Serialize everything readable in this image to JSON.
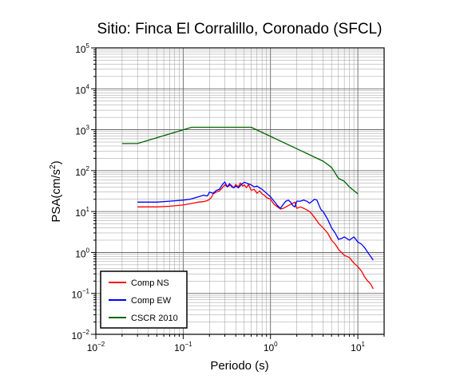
{
  "chart_data": {
    "type": "line",
    "title": "Sitio: Finca El Corralillo, Coronado (SFCL)",
    "xlabel": "Periodo (s)",
    "ylabel": "PSA(cm/s²)",
    "ylabel_parts": {
      "pre": "PSA(cm/s",
      "sup": "2",
      "post": ")"
    },
    "xscale": "log",
    "yscale": "log",
    "xlim": [
      0.01,
      20
    ],
    "ylim": [
      0.01,
      100000
    ],
    "x_ticks": [
      {
        "value": 0.01,
        "base": "10",
        "exp": "−2"
      },
      {
        "value": 0.1,
        "base": "10",
        "exp": "−1"
      },
      {
        "value": 1,
        "base": "10",
        "exp": "0"
      },
      {
        "value": 10,
        "base": "10",
        "exp": "1"
      }
    ],
    "y_ticks": [
      {
        "value": 0.01,
        "base": "10",
        "exp": "−2"
      },
      {
        "value": 0.1,
        "base": "10",
        "exp": "−1"
      },
      {
        "value": 1,
        "base": "10",
        "exp": "0"
      },
      {
        "value": 10,
        "base": "10",
        "exp": "1"
      },
      {
        "value": 100,
        "base": "10",
        "exp": "2"
      },
      {
        "value": 1000,
        "base": "10",
        "exp": "3"
      },
      {
        "value": 10000,
        "base": "10",
        "exp": "4"
      },
      {
        "value": 100000,
        "base": "10",
        "exp": "5"
      }
    ],
    "grid": true,
    "legend_position": "bottom-left",
    "series": [
      {
        "name": "Comp NS",
        "color": "#ff0000",
        "x": [
          0.03,
          0.04,
          0.05,
          0.07,
          0.1,
          0.12,
          0.15,
          0.17,
          0.19,
          0.2,
          0.21,
          0.22,
          0.24,
          0.26,
          0.28,
          0.3,
          0.32,
          0.35,
          0.38,
          0.4,
          0.43,
          0.45,
          0.48,
          0.5,
          0.53,
          0.56,
          0.6,
          0.65,
          0.7,
          0.75,
          0.8,
          0.85,
          0.9,
          1.0,
          1.1,
          1.2,
          1.3,
          1.4,
          1.5,
          1.7,
          1.9,
          2.0,
          2.2,
          2.4,
          2.6,
          2.8,
          3.0,
          3.3,
          3.6,
          4.0,
          4.5,
          5.0,
          5.5,
          6.0,
          6.5,
          7.0,
          8.0,
          9.0,
          10.0,
          11.0,
          12.0,
          13.0,
          14.0,
          15.0
        ],
        "values": [
          13,
          13,
          13,
          13.5,
          14.5,
          15.5,
          17,
          17.5,
          18.5,
          20,
          22,
          27,
          30,
          32,
          38,
          45,
          40,
          45,
          38,
          46,
          40,
          50,
          42,
          45,
          38,
          46,
          33,
          35,
          28,
          32,
          27,
          25,
          22,
          20,
          15,
          13,
          11.5,
          12,
          13,
          15,
          17,
          12,
          13,
          12,
          11,
          10,
          8.5,
          6.5,
          5,
          4,
          3,
          2,
          1.6,
          1.2,
          1.0,
          0.85,
          0.75,
          0.55,
          0.45,
          0.35,
          0.25,
          0.2,
          0.17,
          0.13
        ]
      },
      {
        "name": "Comp EW",
        "color": "#0000ff",
        "x": [
          0.03,
          0.04,
          0.05,
          0.07,
          0.1,
          0.12,
          0.15,
          0.17,
          0.19,
          0.2,
          0.22,
          0.24,
          0.26,
          0.28,
          0.3,
          0.32,
          0.34,
          0.36,
          0.38,
          0.4,
          0.43,
          0.46,
          0.5,
          0.55,
          0.6,
          0.65,
          0.7,
          0.75,
          0.8,
          0.9,
          1.0,
          1.1,
          1.2,
          1.3,
          1.4,
          1.5,
          1.6,
          1.7,
          1.8,
          1.9,
          2.0,
          2.2,
          2.4,
          2.6,
          2.8,
          3.0,
          3.2,
          3.4,
          3.6,
          3.8,
          4.0,
          4.5,
          5.0,
          5.5,
          6.0,
          6.5,
          7.0,
          8.0,
          9.0,
          10.0,
          11.0,
          12.0,
          13.0,
          14.0,
          15.0
        ],
        "values": [
          17,
          17,
          17,
          18,
          19,
          20,
          23,
          25,
          24,
          30,
          28,
          33,
          35,
          45,
          53,
          40,
          48,
          40,
          38,
          42,
          38,
          45,
          52,
          48,
          45,
          40,
          42,
          38,
          35,
          28,
          23,
          18,
          14,
          12,
          15,
          18,
          19,
          17,
          14,
          13,
          18,
          18,
          19,
          18,
          16,
          18,
          20,
          19,
          14,
          11,
          10,
          6.5,
          4,
          3,
          2.1,
          2.2,
          2.4,
          2.0,
          2.4,
          1.8,
          1.6,
          1.3,
          1.0,
          0.8,
          0.65
        ]
      },
      {
        "name": "CSCR 2010",
        "color": "#006400",
        "x": [
          0.02,
          0.03,
          0.125,
          0.6,
          4.0,
          5.0,
          6.0,
          7.0,
          8.0,
          10.0
        ],
        "values": [
          460,
          460,
          1150,
          1150,
          170,
          120,
          65,
          55,
          40,
          27
        ]
      }
    ]
  }
}
